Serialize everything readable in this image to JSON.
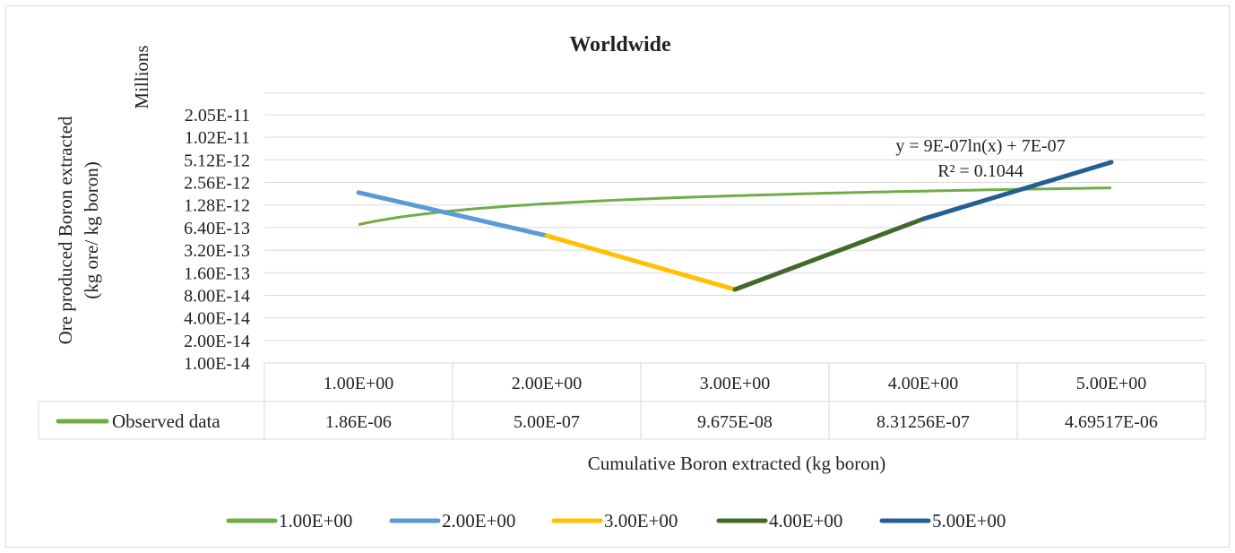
{
  "chart_data": {
    "type": "line",
    "title": "Worldwide",
    "xlabel": "Cumulative Boron extracted (kg boron)",
    "ylabel_lines": [
      "Ore produced Boron extracted",
      "(kg ore/ kg boron)"
    ],
    "y_display_unit": "Millions",
    "y_scale": "log2",
    "ylim": [
      1e-14,
      2.05e-11
    ],
    "y_ticks": [
      "2.05E-11",
      "1.02E-11",
      "5.12E-12",
      "2.56E-12",
      "1.28E-12",
      "6.40E-13",
      "3.20E-13",
      "1.60E-13",
      "8.00E-14",
      "4.00E-14",
      "2.00E-14",
      "1.00E-14"
    ],
    "categories": [
      "1.00E+00",
      "2.00E+00",
      "3.00E+00",
      "4.00E+00",
      "5.00E+00"
    ],
    "series": [
      {
        "name": "Observed data",
        "color": "#70ad47",
        "labels": [
          "1.86E-06",
          "5.00E-07",
          "9.675E-08",
          "8.31256E-07",
          "4.69517E-06"
        ],
        "values": [
          1.86e-06,
          5e-07,
          9.675e-08,
          8.31256e-07,
          4.69517e-06
        ]
      }
    ],
    "segment_colors": [
      "#70ad47",
      "#5b9bd5",
      "#ffc000",
      "#43682b",
      "#255e91"
    ],
    "trendline": {
      "type": "logarithmic",
      "color": "#70ad47",
      "equation": "y = 9E-07ln(x) + 7E-07",
      "r2": "R² = 0.1044"
    },
    "legend": {
      "position": "bottom",
      "items": [
        {
          "label": "1.00E+00",
          "color": "#70ad47"
        },
        {
          "label": "2.00E+00",
          "color": "#5b9bd5"
        },
        {
          "label": "3.00E+00",
          "color": "#ffc000"
        },
        {
          "label": "4.00E+00",
          "color": "#43682b"
        },
        {
          "label": "5.00E+00",
          "color": "#255e91"
        }
      ]
    },
    "grid": true
  }
}
